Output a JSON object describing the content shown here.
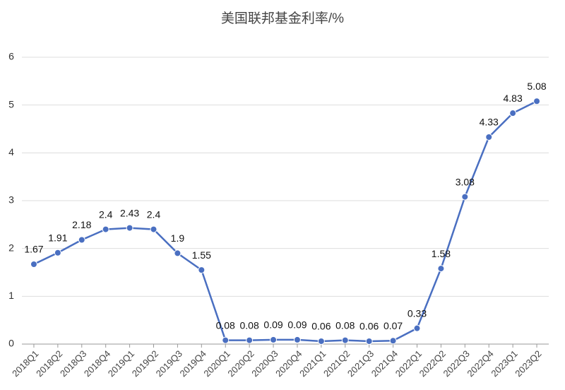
{
  "chart_data": {
    "type": "line",
    "title": "美国联邦基金利率/%",
    "categories": [
      "2018Q1",
      "2018Q2",
      "2018Q3",
      "2018Q4",
      "2019Q1",
      "2019Q2",
      "2019Q3",
      "2019Q4",
      "2020Q1",
      "2020Q2",
      "2020Q3",
      "2020Q4",
      "2021Q1",
      "2021Q2",
      "2021Q3",
      "2021Q4",
      "2022Q1",
      "2022Q2",
      "2022Q3",
      "2022Q4",
      "2023Q1",
      "2023Q2"
    ],
    "values": [
      1.67,
      1.91,
      2.18,
      2.4,
      2.43,
      2.4,
      1.9,
      1.55,
      0.08,
      0.08,
      0.09,
      0.09,
      0.06,
      0.08,
      0.06,
      0.07,
      0.33,
      1.58,
      3.08,
      4.33,
      4.83,
      5.08
    ],
    "color": "#4a6fc1",
    "ylim": [
      0,
      6
    ],
    "yticks": [
      0,
      1,
      2,
      3,
      4,
      5,
      6
    ],
    "grid": true
  }
}
